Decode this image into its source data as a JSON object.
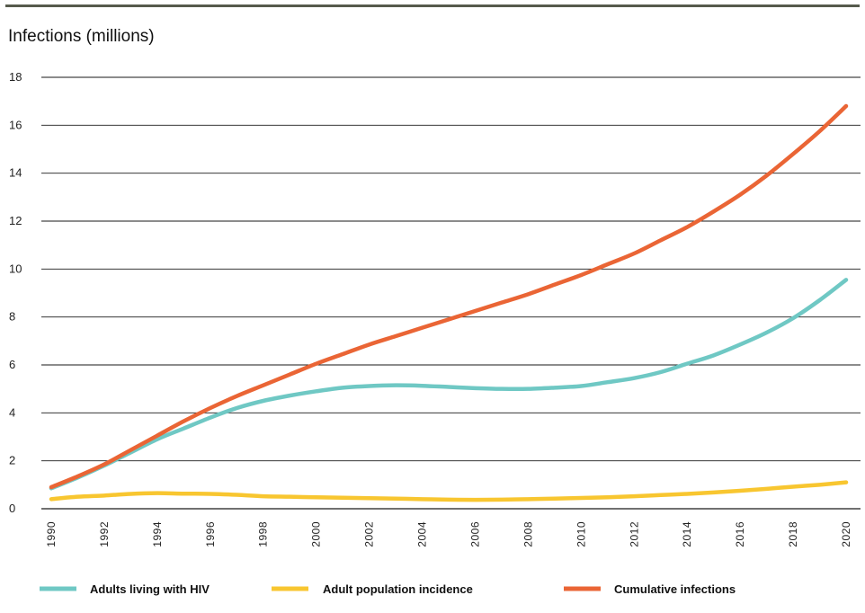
{
  "chart_data": {
    "type": "line",
    "title": "",
    "ylabel": "Infections (millions)",
    "xlabel": "",
    "ylim": [
      0,
      18
    ],
    "yticks": [
      0,
      2,
      4,
      6,
      8,
      10,
      12,
      14,
      16,
      18
    ],
    "xticks": [
      1990,
      1992,
      1994,
      1996,
      1998,
      2000,
      2002,
      2004,
      2006,
      2008,
      2010,
      2012,
      2014,
      2016,
      2018,
      2020
    ],
    "grid": "horizontal",
    "legend_position": "bottom",
    "x": [
      1990,
      1991,
      1992,
      1993,
      1994,
      1995,
      1996,
      1997,
      1998,
      1999,
      2000,
      2001,
      2002,
      2003,
      2004,
      2005,
      2006,
      2007,
      2008,
      2009,
      2010,
      2011,
      2012,
      2013,
      2014,
      2015,
      2016,
      2017,
      2018,
      2019,
      2020
    ],
    "series": [
      {
        "name": "Adults living with HIV",
        "color": "#6fc8c4",
        "values": [
          0.85,
          1.3,
          1.8,
          2.35,
          2.9,
          3.35,
          3.8,
          4.2,
          4.5,
          4.72,
          4.9,
          5.05,
          5.12,
          5.15,
          5.13,
          5.08,
          5.03,
          5.0,
          5.0,
          5.05,
          5.12,
          5.28,
          5.45,
          5.7,
          6.05,
          6.4,
          6.85,
          7.35,
          7.95,
          8.7,
          9.55
        ]
      },
      {
        "name": "Adult population incidence",
        "color": "#f8c630",
        "values": [
          0.4,
          0.5,
          0.55,
          0.62,
          0.65,
          0.63,
          0.62,
          0.58,
          0.52,
          0.5,
          0.48,
          0.46,
          0.44,
          0.42,
          0.4,
          0.38,
          0.37,
          0.38,
          0.4,
          0.42,
          0.45,
          0.48,
          0.52,
          0.57,
          0.62,
          0.68,
          0.75,
          0.83,
          0.92,
          1.0,
          1.1
        ]
      },
      {
        "name": "Cumulative infections",
        "color": "#ea6535",
        "values": [
          0.9,
          1.35,
          1.85,
          2.45,
          3.05,
          3.65,
          4.2,
          4.7,
          5.15,
          5.6,
          6.05,
          6.45,
          6.85,
          7.2,
          7.55,
          7.9,
          8.25,
          8.6,
          8.95,
          9.35,
          9.75,
          10.2,
          10.65,
          11.2,
          11.75,
          12.4,
          13.1,
          13.9,
          14.8,
          15.75,
          16.8
        ]
      }
    ]
  }
}
